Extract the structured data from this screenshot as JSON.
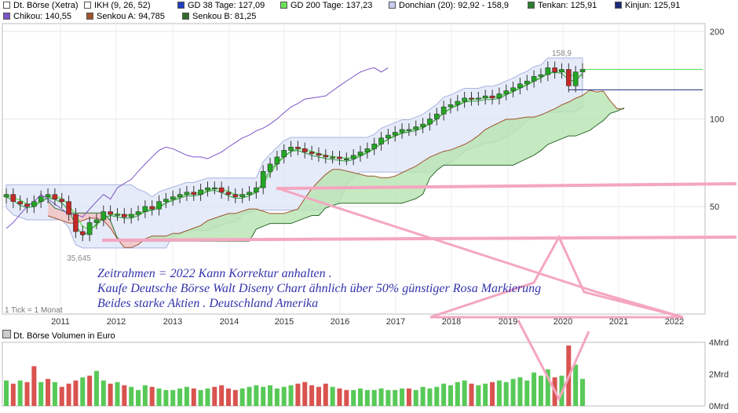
{
  "legend": [
    {
      "label": "Dt. Börse (Xetra)",
      "color": "#ffffff"
    },
    {
      "label": "IKH (9, 26, 52)",
      "color": "#ffffff"
    },
    {
      "label": "GD 38 Tage: 127,09",
      "color": "#1f3fbf"
    },
    {
      "label": "GD 200 Tage: 137,23",
      "color": "#6ee05a"
    },
    {
      "label": "Donchian (20): 92,92 - 158,9",
      "color": "#c6cdee"
    },
    {
      "label": "Tenkan: 125,91",
      "color": "#2f7d32"
    },
    {
      "label": "Kinjun: 125,91",
      "color": "#1c2a78"
    },
    {
      "label": "Chikou: 140,55",
      "color": "#7d55c7"
    },
    {
      "label": "Senkou A: 94,785",
      "color": "#a0522d"
    },
    {
      "label": "Senkou B: 81,25",
      "color": "#2e6b2e"
    }
  ],
  "volume_panel": {
    "title": "Dt. Börse Volumen in Euro"
  },
  "tick_note": "1 Tick = 1 Monat",
  "annotation": [
    "Zeitrahmen = 2022 Kann Korrektur anhalten .",
    "Kaufe Deutsche Börse Walt Diseny Chart ähnlich über 50% günstiger  Rosa Markierung",
    "Beides starke Aktien . Deutschland Amerika"
  ],
  "colors": {
    "up": "#22a722",
    "down": "#c62828",
    "volume_up": "#57c957",
    "volume_down": "#d9534f",
    "cloud_bull": "#b7e4b0",
    "cloud_bear": "#f3c2c2",
    "donchian": "#dfe6f7",
    "annotation": "#3333aa",
    "marker": "#f4a6c0"
  },
  "chart_data": [
    {
      "type": "candlestick",
      "title": "",
      "x_labels": [
        "2011",
        "2012",
        "2013",
        "2014",
        "2015",
        "2016",
        "2017",
        "2018",
        "2019",
        "2020",
        "2021",
        "2022"
      ],
      "y_ticks": [
        50,
        100,
        200
      ],
      "ylim": [
        0,
        200
      ],
      "scale": "log",
      "annotations": {
        "high": "158,9",
        "low": "35,645"
      },
      "series": {
        "close_monthly": [
          55,
          52,
          51,
          50,
          52,
          54,
          55,
          53,
          52,
          47,
          41,
          40,
          44,
          45,
          48,
          47,
          47,
          46,
          47,
          48,
          50,
          49,
          52,
          53,
          54,
          55,
          56,
          55,
          57,
          58,
          58,
          56,
          55,
          54,
          55,
          56,
          58,
          66,
          70,
          74,
          78,
          80,
          79,
          77,
          76,
          75,
          74,
          74,
          73,
          73,
          75,
          77,
          79,
          82,
          86,
          88,
          90,
          92,
          92,
          94,
          96,
          100,
          104,
          110,
          112,
          115,
          118,
          117,
          118,
          120,
          118,
          122,
          125,
          128,
          132,
          135,
          140,
          142,
          150,
          145,
          148,
          130,
          145,
          148
        ],
        "tenkan": [
          54,
          53,
          52,
          51,
          51,
          52,
          53,
          53,
          52,
          49,
          45,
          42,
          42,
          43,
          45,
          46,
          46,
          46,
          47,
          47,
          48,
          49,
          50,
          52,
          53,
          54,
          55,
          55,
          56,
          57,
          57,
          56,
          55,
          55,
          55,
          56,
          57,
          62,
          67,
          71,
          75,
          78,
          78,
          77,
          76,
          75,
          74,
          74,
          73,
          73,
          74,
          76,
          78,
          80,
          83,
          86,
          88,
          90,
          91,
          93,
          95,
          98,
          102,
          107,
          110,
          113,
          116,
          116,
          117,
          118,
          118,
          120,
          123,
          126,
          130,
          133,
          137,
          140,
          146,
          144,
          145,
          134,
          126,
          126
        ],
        "chikou": [
          42,
          44,
          47,
          50,
          52,
          55,
          53,
          51,
          49,
          47,
          47,
          46,
          49,
          52,
          55,
          53,
          58,
          60,
          62,
          66,
          70,
          74,
          78,
          80,
          79,
          77,
          75,
          74,
          74,
          73,
          75,
          77,
          80,
          83,
          86,
          88,
          91,
          93,
          96,
          100,
          105,
          110,
          113,
          117,
          118,
          119,
          120,
          125,
          130,
          135,
          140,
          145,
          148,
          150,
          145,
          150
        ]
      }
    },
    {
      "type": "bar",
      "title": "Dt. Börse Volumen in Euro",
      "y_ticks": [
        "0Mrd",
        "2Mrd",
        "4Mrd"
      ],
      "ylim": [
        0,
        4
      ],
      "values": [
        1.6,
        1.4,
        1.6,
        1.5,
        2.5,
        1.5,
        1.7,
        1.5,
        1.2,
        1.4,
        1.6,
        1.8,
        1.9,
        2.2,
        1.6,
        1.4,
        1.5,
        1.3,
        1.2,
        1.0,
        1.3,
        1.2,
        1.1,
        1.0,
        1.0,
        1.1,
        1.2,
        1.1,
        1.0,
        1.1,
        1.2,
        1.3,
        1.1,
        1.0,
        1.1,
        1.2,
        1.3,
        1.2,
        1.3,
        1.1,
        1.2,
        1.3,
        1.4,
        1.5,
        1.3,
        1.2,
        1.4,
        1.2,
        1.1,
        1.0,
        1.0,
        1.1,
        1.0,
        1.0,
        1.1,
        1.0,
        1.0,
        1.1,
        1.1,
        1.0,
        1.2,
        1.1,
        1.2,
        1.4,
        1.3,
        1.5,
        1.6,
        1.4,
        1.3,
        1.4,
        1.5,
        1.6,
        1.5,
        1.7,
        1.8,
        1.6,
        2.1,
        1.9,
        2.3,
        1.8,
        1.9,
        3.8,
        2.6,
        1.7
      ],
      "up_flags": [
        1,
        0,
        1,
        0,
        0,
        1,
        0,
        1,
        0,
        0,
        0,
        1,
        0,
        1,
        1,
        0,
        1,
        0,
        1,
        1,
        1,
        0,
        1,
        1,
        1,
        1,
        1,
        0,
        1,
        1,
        0,
        0,
        0,
        0,
        1,
        1,
        1,
        1,
        1,
        1,
        1,
        1,
        0,
        0,
        0,
        0,
        0,
        1,
        0,
        0,
        1,
        1,
        1,
        1,
        1,
        1,
        1,
        1,
        0,
        1,
        1,
        1,
        1,
        1,
        1,
        1,
        1,
        0,
        1,
        1,
        0,
        1,
        1,
        1,
        1,
        1,
        1,
        1,
        1,
        0,
        1,
        0,
        1,
        1
      ]
    }
  ]
}
